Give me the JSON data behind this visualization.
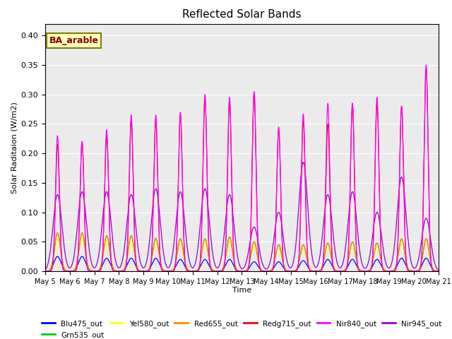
{
  "title": "Reflected Solar Bands",
  "xlabel": "Time",
  "ylabel": "Solar Raditaion (W/m2)",
  "annotation": "BA_arable",
  "ylim": [
    0.0,
    0.42
  ],
  "legend_entries": [
    {
      "label": "Blu475_out",
      "color": "#0000FF"
    },
    {
      "label": "Grn535_out",
      "color": "#00CC00"
    },
    {
      "label": "Yel580_out",
      "color": "#FFFF00"
    },
    {
      "label": "Red655_out",
      "color": "#FF8800"
    },
    {
      "label": "Redg715_out",
      "color": "#FF0000"
    },
    {
      "label": "Nir840_out",
      "color": "#FF00FF"
    },
    {
      "label": "Nir945_out",
      "color": "#9900CC"
    }
  ],
  "day_peaks": {
    "Nir840": [
      0.23,
      0.22,
      0.24,
      0.265,
      0.265,
      0.27,
      0.3,
      0.295,
      0.305,
      0.245,
      0.267,
      0.285,
      0.285,
      0.295,
      0.28,
      0.35
    ],
    "Nir945": [
      0.13,
      0.135,
      0.135,
      0.13,
      0.14,
      0.135,
      0.14,
      0.13,
      0.075,
      0.1,
      0.185,
      0.13,
      0.135,
      0.1,
      0.16,
      0.09
    ],
    "Redg715": [
      0.215,
      0.22,
      0.23,
      0.255,
      0.255,
      0.265,
      0.295,
      0.29,
      0.3,
      0.24,
      0.255,
      0.25,
      0.285,
      0.285,
      0.28,
      0.345
    ],
    "Red655": [
      0.065,
      0.065,
      0.06,
      0.06,
      0.055,
      0.055,
      0.055,
      0.058,
      0.05,
      0.045,
      0.045,
      0.048,
      0.05,
      0.048,
      0.055,
      0.055
    ],
    "Grn535": [
      0.065,
      0.065,
      0.06,
      0.06,
      0.056,
      0.055,
      0.055,
      0.058,
      0.05,
      0.045,
      0.045,
      0.048,
      0.05,
      0.048,
      0.055,
      0.055
    ],
    "Yel580": [
      0.055,
      0.055,
      0.05,
      0.05,
      0.048,
      0.048,
      0.048,
      0.05,
      0.042,
      0.038,
      0.038,
      0.042,
      0.042,
      0.042,
      0.048,
      0.048
    ],
    "Blu475": [
      0.025,
      0.025,
      0.022,
      0.022,
      0.022,
      0.02,
      0.02,
      0.02,
      0.016,
      0.016,
      0.018,
      0.02,
      0.02,
      0.02,
      0.022,
      0.022
    ]
  },
  "peak_widths": {
    "Nir840": 0.08,
    "Nir945": 0.18,
    "Redg715": 0.08,
    "Red655": 0.12,
    "Grn535": 0.12,
    "Yel580": 0.13,
    "Blu475": 0.14
  },
  "n_days": 16,
  "start_day": 5,
  "plot_bg": "#EBEBEB"
}
